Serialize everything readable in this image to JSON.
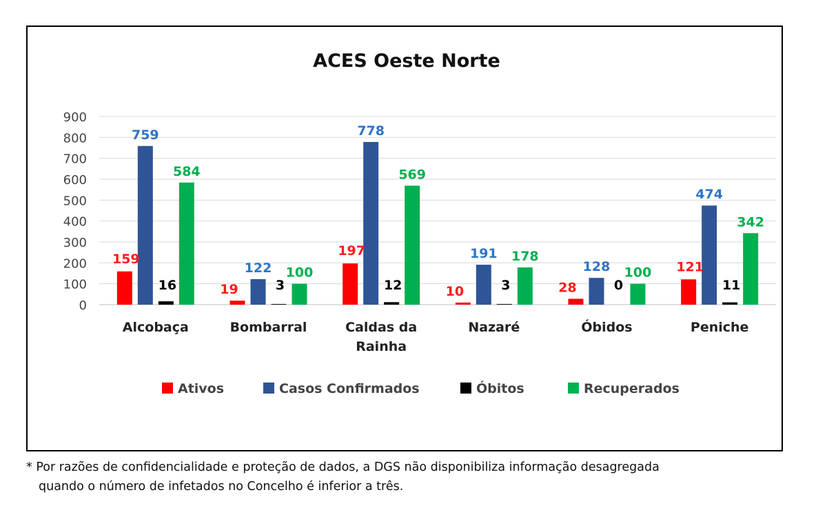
{
  "chart_data": {
    "type": "bar",
    "title": "ACES Oeste Norte",
    "categories": [
      [
        "Alcobaça"
      ],
      [
        "Bombarral"
      ],
      [
        "Caldas da",
        "Rainha"
      ],
      [
        "Nazaré"
      ],
      [
        "Óbidos"
      ],
      [
        "Peniche"
      ]
    ],
    "series": [
      {
        "name": "Ativos",
        "color": "#ff0000",
        "label_color": "#ff1a1a",
        "values": [
          159,
          19,
          197,
          10,
          28,
          121
        ]
      },
      {
        "name": "Casos Confirmados",
        "color": "#2f5597",
        "label_color": "#2e75c6",
        "values": [
          759,
          122,
          778,
          191,
          128,
          474
        ]
      },
      {
        "name": "Óbitos",
        "color": "#000000",
        "label_color": "#000000",
        "values": [
          16,
          3,
          12,
          3,
          0,
          11
        ]
      },
      {
        "name": "Recuperados",
        "color": "#00b050",
        "label_color": "#00b050",
        "values": [
          584,
          100,
          569,
          178,
          100,
          342
        ]
      }
    ],
    "ylim": [
      0,
      900
    ],
    "yticks": [
      0,
      100,
      200,
      300,
      400,
      500,
      600,
      700,
      800,
      900
    ],
    "grid": true,
    "legend_position": "bottom",
    "xlabel": "",
    "ylabel": ""
  },
  "footnote": {
    "line1": "* Por razões de confidencialidade e proteção de dados, a DGS não disponibiliza informação desagregada",
    "line2": "quando o número de infetados no Concelho é inferior a três."
  }
}
